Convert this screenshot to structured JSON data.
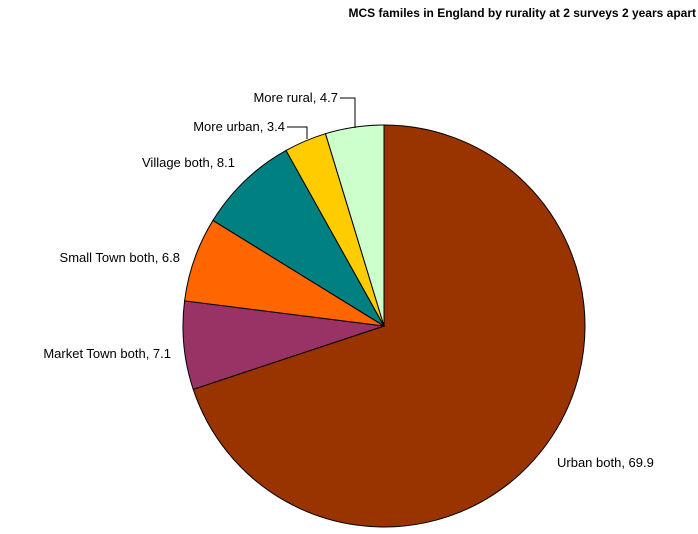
{
  "chart_data": {
    "type": "pie",
    "title": "MCS familes in England by rurality at 2 surveys 2 years apart",
    "start_angle_deg": 0,
    "direction": "clockwise",
    "slices": [
      {
        "label": "Urban both",
        "value": 69.9,
        "color": "#993300",
        "label_text": "Urban both, 69.9"
      },
      {
        "label": "Market Town both",
        "value": 7.1,
        "color": "#993366",
        "label_text": "Market Town both, 7.1"
      },
      {
        "label": "Small Town both",
        "value": 6.8,
        "color": "#FF6600",
        "label_text": "Small Town both, 6.8"
      },
      {
        "label": "Village both",
        "value": 8.1,
        "color": "#008080",
        "label_text": "Village both, 8.1"
      },
      {
        "label": "More urban",
        "value": 3.4,
        "color": "#FFCC00",
        "label_text": "More urban, 3.4"
      },
      {
        "label": "More rural",
        "value": 4.7,
        "color": "#CCFFCC",
        "label_text": "More rural, 4.7"
      }
    ]
  }
}
